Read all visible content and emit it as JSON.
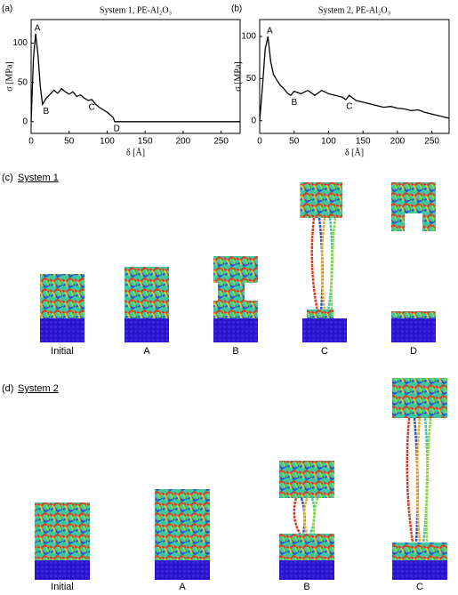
{
  "chart_data": [
    {
      "type": "line",
      "panel": "(a)",
      "title": "System 1, PE-Al₂O₃",
      "xlabel": "δ [Å]",
      "ylabel": "σ [MPa]",
      "color": "#000000",
      "x": [
        0,
        3,
        6,
        9,
        12,
        15,
        20,
        25,
        30,
        35,
        40,
        45,
        50,
        55,
        60,
        65,
        70,
        75,
        80,
        85,
        90,
        95,
        100,
        105,
        108,
        110,
        150,
        200,
        275
      ],
      "values": [
        0,
        80,
        112,
        85,
        45,
        22,
        30,
        35,
        40,
        36,
        42,
        38,
        35,
        38,
        32,
        34,
        30,
        27,
        28,
        22,
        18,
        15,
        12,
        8,
        5,
        0,
        0,
        0,
        0
      ],
      "xlim": [
        0,
        275
      ],
      "ylim": [
        -15,
        130
      ],
      "xticks": [
        0,
        50,
        100,
        150,
        200,
        250
      ],
      "yticks": [
        0,
        50,
        100
      ],
      "annotations": [
        {
          "label": "A",
          "x": 6,
          "y": 112
        },
        {
          "label": "B",
          "x": 15,
          "y": 22
        },
        {
          "label": "C",
          "x": 75,
          "y": 27
        },
        {
          "label": "D",
          "x": 108,
          "y": 0
        }
      ]
    },
    {
      "type": "line",
      "panel": "(b)",
      "title": "System 2, PE-Al₂O₃",
      "xlabel": "δ [Å]",
      "ylabel": "σ [MPa]",
      "color": "#000000",
      "x": [
        0,
        4,
        8,
        12,
        16,
        20,
        25,
        30,
        35,
        40,
        45,
        50,
        60,
        70,
        80,
        90,
        100,
        110,
        120,
        125,
        130,
        140,
        150,
        160,
        170,
        180,
        190,
        200,
        210,
        220,
        230,
        240,
        250,
        260,
        270,
        275
      ],
      "values": [
        0,
        40,
        85,
        100,
        70,
        55,
        48,
        42,
        38,
        33,
        30,
        35,
        32,
        36,
        30,
        36,
        32,
        30,
        28,
        25,
        30,
        24,
        22,
        20,
        18,
        16,
        17,
        15,
        14,
        12,
        13,
        10,
        8,
        6,
        4,
        3
      ],
      "xlim": [
        0,
        275
      ],
      "ylim": [
        -15,
        120
      ],
      "xticks": [
        0,
        50,
        100,
        150,
        200,
        250
      ],
      "yticks": [
        0,
        50,
        100
      ],
      "annotations": [
        {
          "label": "A",
          "x": 12,
          "y": 100
        },
        {
          "label": "B",
          "x": 45,
          "y": 30
        },
        {
          "label": "C",
          "x": 125,
          "y": 25
        }
      ]
    }
  ],
  "panels": [
    {
      "label": "(c)",
      "title": "System 1",
      "snapshots": [
        "Initial",
        "A",
        "B",
        "C",
        "D"
      ]
    },
    {
      "label": "(d)",
      "title": "System 2",
      "snapshots": [
        "Initial",
        "A",
        "B",
        "C"
      ]
    }
  ]
}
